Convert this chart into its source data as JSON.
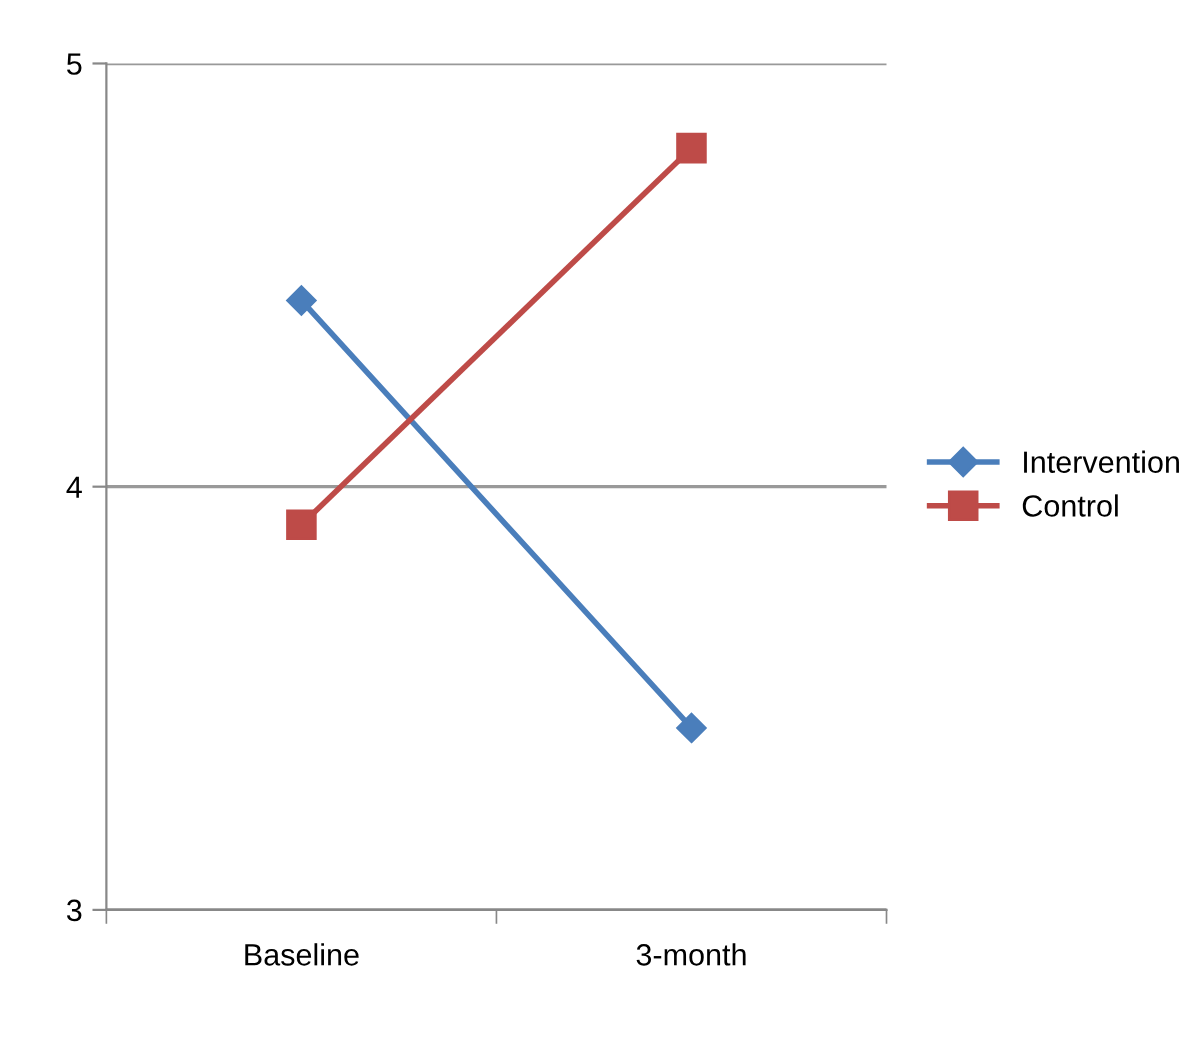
{
  "chart_data": {
    "type": "line",
    "categories": [
      "Baseline",
      "3-month"
    ],
    "series": [
      {
        "name": "Intervention",
        "color": "#4a7ebb",
        "marker": "diamond",
        "values": [
          4.44,
          3.43
        ]
      },
      {
        "name": "Control",
        "color": "#be4b48",
        "marker": "square",
        "values": [
          3.91,
          4.8
        ]
      }
    ],
    "ylim": [
      3,
      5
    ],
    "yticks": [
      3,
      4,
      5
    ],
    "grid": "y",
    "legend": "right",
    "line_style": "solid"
  }
}
